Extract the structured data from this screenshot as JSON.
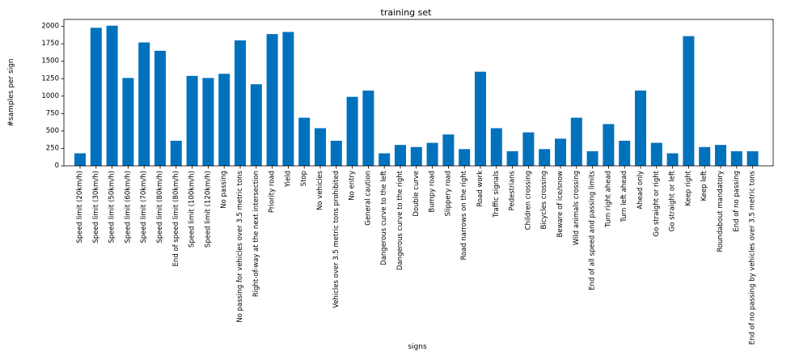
{
  "chart_data": {
    "type": "bar",
    "title": "training set",
    "xlabel": "signs",
    "ylabel": "#samples per sign",
    "ylim": [
      0,
      2100
    ],
    "yticks": [
      0,
      250,
      500,
      750,
      1000,
      1250,
      1500,
      1750,
      2000
    ],
    "grid": false,
    "bar_color": "#0072bd",
    "categories": [
      "Speed limit (20km/h)",
      "Speed limit (30km/h)",
      "Speed limit (50km/h)",
      "Speed limit (60km/h)",
      "Speed limit (70km/h)",
      "Speed limit (80km/h)",
      "End of speed limit (80km/h)",
      "Speed limit (100km/h)",
      "Speed limit (120km/h)",
      "No passing",
      "No passing for vehicles over 3.5 metric tons",
      "Right-of-way at the next intersection",
      "Priority road",
      "Yield",
      "Stop",
      "No vehicles",
      "Vehicles over 3.5 metric tons prohibited",
      "No entry",
      "General caution",
      "Dangerous curve to the left",
      "Dangerous curve to the right",
      "Double curve",
      "Bumpy road",
      "Slippery road",
      "Road narrows on the right",
      "Road work",
      "Traffic signals",
      "Pedestrians",
      "Children crossing",
      "Bicycles crossing",
      "Beware of ice/snow",
      "Wild animals crossing",
      "End of all speed and passing limits",
      "Turn right ahead",
      "Turn left ahead",
      "Ahead only",
      "Go straight or right",
      "Go straight or left",
      "Keep right",
      "Keep left",
      "Roundabout mandatory",
      "End of no passing",
      "End of no passing by vehicles over 3.5 metric tons"
    ],
    "values": [
      180,
      1980,
      2010,
      1260,
      1770,
      1650,
      360,
      1290,
      1260,
      1320,
      1800,
      1170,
      1890,
      1920,
      690,
      540,
      360,
      990,
      1080,
      180,
      300,
      270,
      330,
      450,
      240,
      1350,
      540,
      210,
      480,
      240,
      390,
      690,
      210,
      599,
      360,
      1080,
      330,
      180,
      1860,
      270,
      300,
      210,
      210
    ]
  }
}
